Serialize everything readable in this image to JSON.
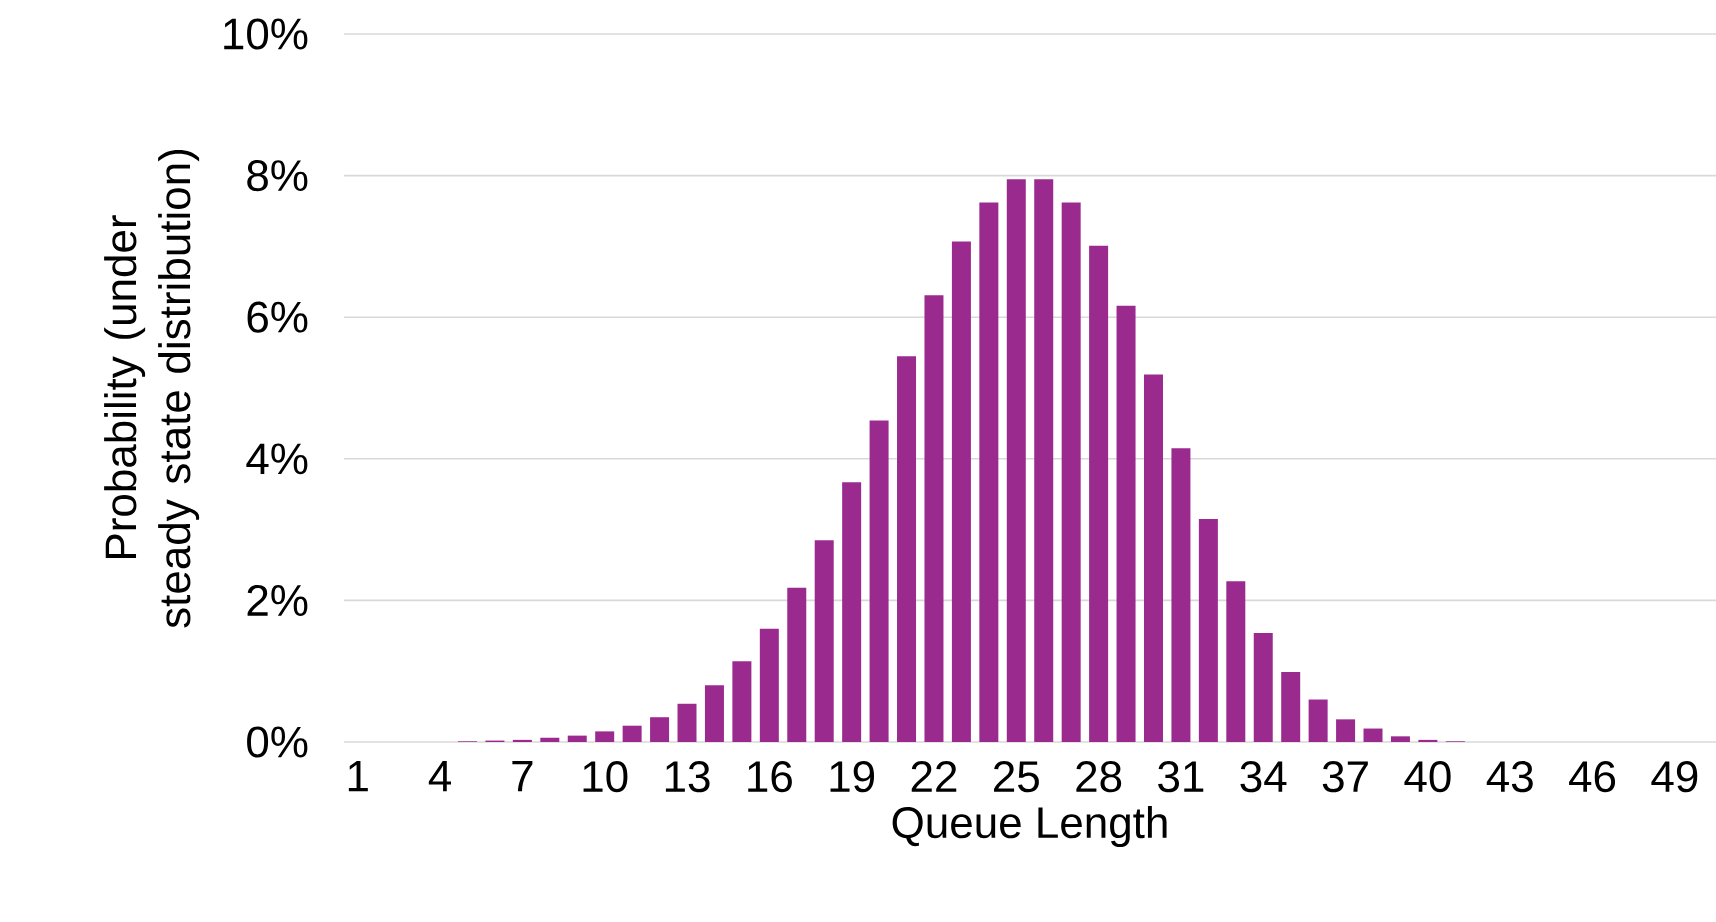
{
  "chart_data": {
    "type": "bar",
    "xlabel": "Queue Length",
    "ylabel": "Probability (under steady state distribution)",
    "categories": [
      "1",
      null,
      null,
      "4",
      null,
      null,
      "7",
      null,
      null,
      "10",
      null,
      null,
      "13",
      null,
      null,
      "16",
      null,
      null,
      "19",
      null,
      null,
      "22",
      null,
      null,
      "25",
      null,
      null,
      "28",
      null,
      null,
      "31",
      null,
      null,
      "34",
      null,
      null,
      "37",
      null,
      null,
      "40",
      null,
      null,
      "43",
      null,
      null,
      "46",
      null,
      null,
      "49",
      null
    ],
    "values": [
      0,
      0,
      0,
      0,
      0.01,
      0.02,
      0.03,
      0.06,
      0.09,
      0.15,
      0.23,
      0.35,
      0.54,
      0.8,
      1.14,
      1.6,
      2.18,
      2.85,
      3.67,
      4.54,
      5.45,
      6.31,
      7.07,
      7.62,
      7.95,
      7.95,
      7.62,
      7.01,
      6.16,
      5.19,
      4.15,
      3.15,
      2.27,
      1.54,
      0.99,
      0.6,
      0.32,
      0.19,
      0.08,
      0.03,
      0.01,
      0,
      0,
      0,
      0,
      0,
      0,
      0,
      0,
      0
    ],
    "color": "#9b2a8f",
    "ylim": [
      0,
      10
    ],
    "yticks": [
      {
        "value": 0,
        "label": "0%"
      },
      {
        "value": 2,
        "label": "2%"
      },
      {
        "value": 4,
        "label": "4%"
      },
      {
        "value": 6,
        "label": "6%"
      },
      {
        "value": 8,
        "label": "8%"
      },
      {
        "value": 10,
        "label": "10%"
      }
    ],
    "grid": "y"
  }
}
